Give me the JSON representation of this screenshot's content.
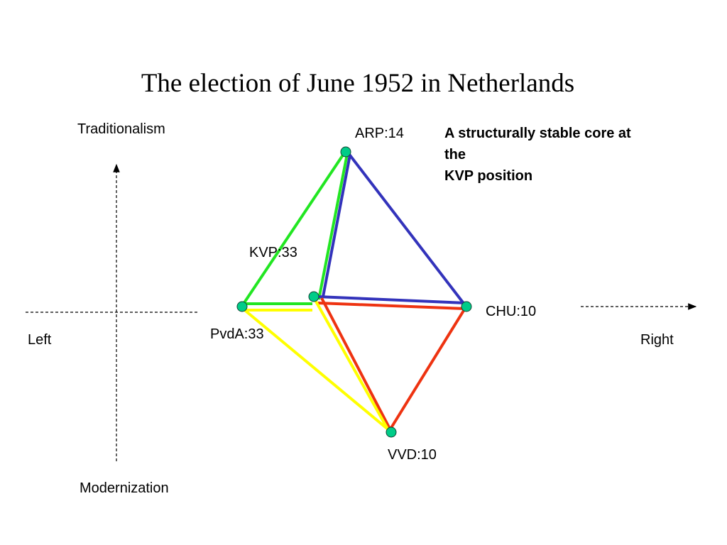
{
  "title": "The election of June 1952 in Netherlands",
  "axes": {
    "top": "Traditionalism",
    "bottom": "Modernization",
    "left": "Left",
    "right": "Right"
  },
  "note": {
    "lines": [
      "A structurally stable core at",
      "the",
      "KVP position"
    ]
  },
  "parties": [
    {
      "id": "arp",
      "label": "ARP:14"
    },
    {
      "id": "kvp",
      "label": "KVP:33"
    },
    {
      "id": "pvda",
      "label": "PvdA:33"
    },
    {
      "id": "chu",
      "label": "CHU:10"
    },
    {
      "id": "vvd",
      "label": "VVD:10"
    }
  ],
  "colors": {
    "green": "#22e622",
    "blue": "#3333bb",
    "red": "#ee3311",
    "yellow": "#ffff00",
    "node_fill": "#00cc88"
  }
}
